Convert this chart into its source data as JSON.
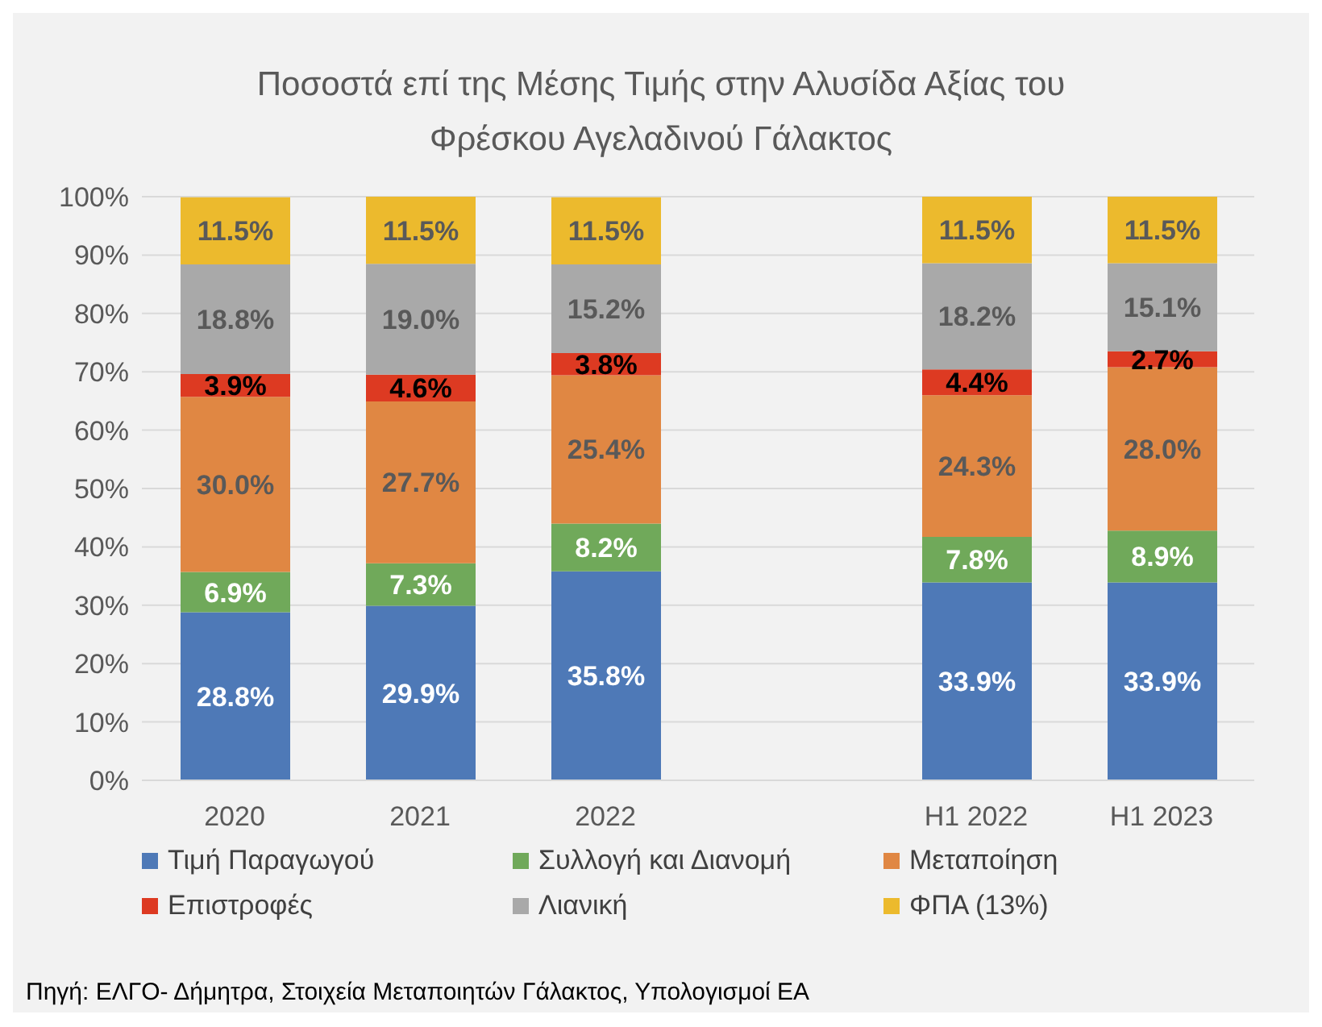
{
  "chart_data": {
    "type": "bar",
    "stacked": true,
    "title": "Ποσοστά επί της Μέσης Τιμής στην Αλυσίδα Αξίας του Φρέσκου Αγελαδινού Γάλακτος",
    "categories": [
      "2020",
      "2021",
      "2022",
      null,
      "H1 2022",
      "H1 2023"
    ],
    "series": [
      {
        "name": "Τιμή Παραγωγού",
        "color": "#4e79b7",
        "values": [
          28.8,
          29.9,
          35.8,
          null,
          33.9,
          33.9
        ],
        "value_labels": [
          "28.8%",
          "29.9%",
          "35.8%",
          null,
          "33.9%",
          "33.9%"
        ]
      },
      {
        "name": "Συλλογή και Διανομή",
        "color": "#70a95a",
        "values": [
          6.9,
          7.3,
          8.2,
          null,
          7.8,
          8.9
        ],
        "value_labels": [
          "6.9%",
          "7.3%",
          "8.2%",
          null,
          "7.8%",
          "8.9%"
        ]
      },
      {
        "name": "Μεταποίηση",
        "color": "#e08743",
        "values": [
          30.0,
          27.7,
          25.4,
          null,
          24.3,
          28.0
        ],
        "value_labels": [
          "30.0%",
          "27.7%",
          "25.4%",
          null,
          "24.3%",
          "28.0%"
        ]
      },
      {
        "name": "Επιστροφές",
        "color": "#dd3a22",
        "values": [
          3.9,
          4.6,
          3.8,
          null,
          4.4,
          2.7
        ],
        "value_labels": [
          "3.9%",
          "4.6%",
          "3.8%",
          null,
          "4.4%",
          "2.7%"
        ]
      },
      {
        "name": "Λιανική",
        "color": "#a9a9a9",
        "values": [
          18.8,
          19.0,
          15.2,
          null,
          18.2,
          15.1
        ],
        "value_labels": [
          "18.8%",
          "19.0%",
          "15.2%",
          null,
          "18.2%",
          "15.1%"
        ]
      },
      {
        "name": "ΦΠΑ (13%)",
        "color": "#ecba2d",
        "values": [
          11.5,
          11.5,
          11.5,
          null,
          11.5,
          11.5
        ],
        "value_labels": [
          "11.5%",
          "11.5%",
          "11.5%",
          null,
          "11.5%",
          "11.5%"
        ]
      }
    ],
    "ylim": [
      0,
      100
    ],
    "yticks": [
      {
        "value": 0,
        "label": "0%"
      },
      {
        "value": 10,
        "label": "10%"
      },
      {
        "value": 20,
        "label": "20%"
      },
      {
        "value": 30,
        "label": "30%"
      },
      {
        "value": 40,
        "label": "40%"
      },
      {
        "value": 50,
        "label": "50%"
      },
      {
        "value": 60,
        "label": "60%"
      },
      {
        "value": 70,
        "label": "70%"
      },
      {
        "value": 80,
        "label": "80%"
      },
      {
        "value": 90,
        "label": "90%"
      },
      {
        "value": 100,
        "label": "100%"
      }
    ],
    "grid": "y",
    "legend": "bottom",
    "annotations": [
      "Πηγή: ΕΛΓΟ- Δήμητρα, Στοιχεία Μεταποιητών Γάλακτος, Υπολογισμοί ΕΑ"
    ]
  }
}
